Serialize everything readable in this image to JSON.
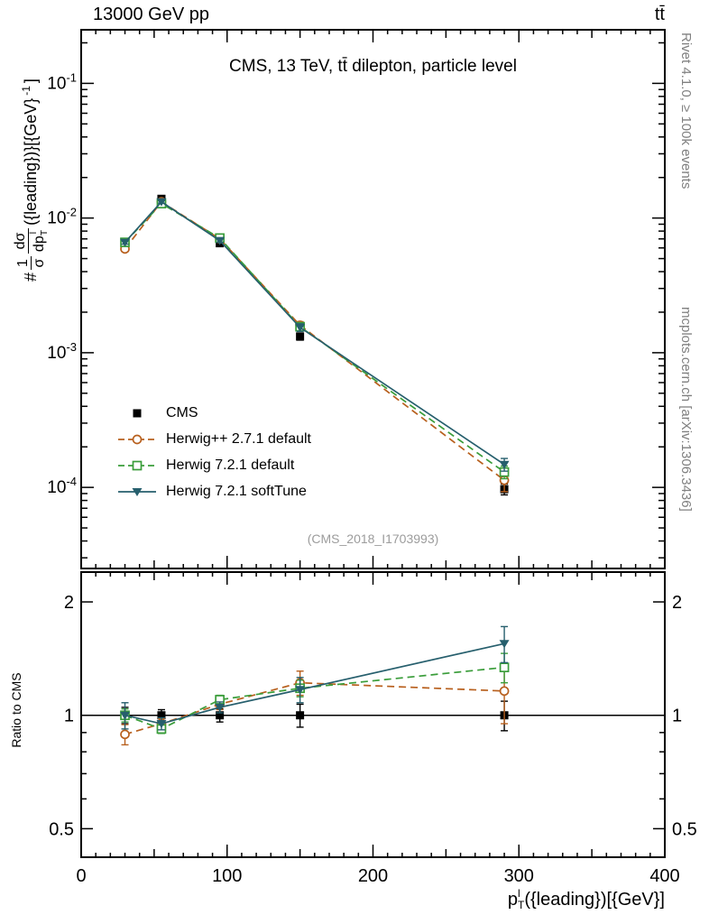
{
  "header": {
    "left": "13000 GeV pp",
    "right": "tt̄"
  },
  "side_text": {
    "top_right": "Rivet 4.1.0, ≥ 100k events",
    "bottom_right": "mcplots.cern.ch [arXiv:1306.3436]"
  },
  "main_panel": {
    "title": "CMS, 13 TeV, tt̄ dilepton, particle level",
    "watermark": "(CMS_2018_I1703993)",
    "ylabel": {
      "prefix": "#",
      "frac1_num": "1",
      "frac1_den": "σ",
      "frac2_num": "dσ",
      "frac2_den_main": "dp",
      "frac2_den_sub": "T",
      "frac2_den_sup": "l",
      "suffix": "({leading})}[{GeV}",
      "suffix_sup": "-1",
      "suffix_close": "]"
    }
  },
  "ratio_panel": {
    "ylabel": "Ratio to CMS"
  },
  "xaxis": {
    "label_main": "p",
    "label_sub": "T",
    "label_sup": "l",
    "label_rest": "({leading})[{GeV}]"
  },
  "chart_data": {
    "type": "line",
    "title": "CMS, 13 TeV, tt̄ dilepton, particle level",
    "xlabel": "p_T^l({leading}) [{GeV}]",
    "ylabel_main": "1/σ dσ/dp_T^l({leading}) [{GeV}^-1]",
    "ylabel_ratio": "Ratio to CMS",
    "x": [
      30,
      55,
      95,
      150,
      290
    ],
    "xlim": [
      0,
      400
    ],
    "xticks": [
      0,
      100,
      200,
      300,
      400
    ],
    "main": {
      "yscale": "log",
      "ylim": [
        2.5e-05,
        0.25
      ],
      "ytick_exponents": [
        -1,
        -2,
        -3,
        -4
      ],
      "series": [
        {
          "name": "CMS",
          "color": "#000000",
          "marker": "square-filled",
          "line": "none",
          "values": [
            0.0066,
            0.0139,
            0.0065,
            0.00132,
            9.7e-05
          ],
          "errors": [
            0.0003,
            0.0004,
            0.00022,
            8e-05,
            9e-06
          ]
        },
        {
          "name": "Herwig++ 2.7.1 default",
          "color": "#b8601e",
          "marker": "circle-open",
          "line": "dashed",
          "values": [
            0.0059,
            0.0132,
            0.007,
            0.0016,
            0.000113
          ],
          "errors": [
            0.0002,
            0.0003,
            0.0002,
            0.0001,
            2e-05
          ]
        },
        {
          "name": "Herwig 7.2.1 default",
          "color": "#3a9d3a",
          "marker": "square-open",
          "line": "dashed",
          "values": [
            0.0066,
            0.0128,
            0.0071,
            0.00156,
            0.00013
          ],
          "errors": [
            0.00015,
            0.00025,
            0.00015,
            8e-05,
            1.4e-05
          ]
        },
        {
          "name": "Herwig 7.2.1 softTune",
          "color": "#265f6d",
          "marker": "triangle-down",
          "line": "solid",
          "values": [
            0.0066,
            0.0132,
            0.0068,
            0.00154,
            0.000148
          ],
          "errors": [
            0.0002,
            0.0003,
            0.0002,
            0.0001,
            1.6e-05
          ]
        }
      ]
    },
    "ratio": {
      "yscale": "log",
      "ylim": [
        0.42,
        2.4
      ],
      "yticks": [
        0.5,
        1,
        2
      ],
      "series": [
        {
          "name": "CMS",
          "values": [
            1,
            1,
            1,
            1,
            1
          ],
          "errors": [
            0.05,
            0.035,
            0.04,
            0.07,
            0.09
          ]
        },
        {
          "name": "Herwig++ 2.7.1 default",
          "values": [
            0.89,
            0.95,
            1.07,
            1.22,
            1.16
          ],
          "errors": [
            0.055,
            0.03,
            0.035,
            0.09,
            0.21
          ]
        },
        {
          "name": "Herwig 7.2.1 default",
          "values": [
            1.0,
            0.92,
            1.1,
            1.18,
            1.34
          ],
          "errors": [
            0.04,
            0.025,
            0.03,
            0.06,
            0.12
          ]
        },
        {
          "name": "Herwig 7.2.1 softTune",
          "values": [
            1.0,
            0.95,
            1.05,
            1.17,
            1.55
          ],
          "errors": [
            0.08,
            0.035,
            0.035,
            0.09,
            0.17
          ]
        }
      ]
    }
  }
}
